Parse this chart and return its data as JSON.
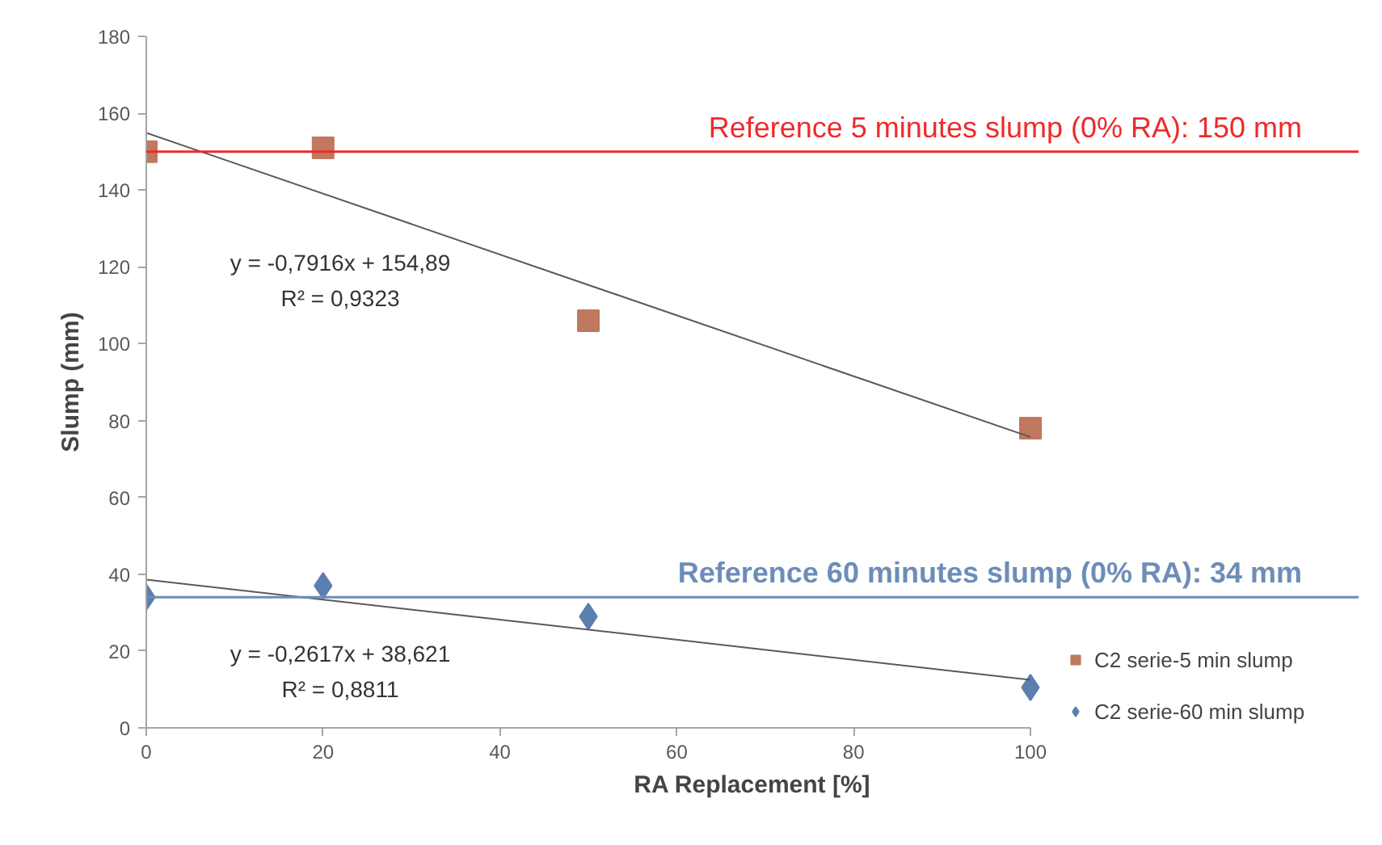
{
  "chart_data": {
    "type": "scatter",
    "xlabel": "RA Replacement [%]",
    "ylabel": "Slump (mm)",
    "xlim": [
      0,
      100
    ],
    "xticks": [
      0,
      20,
      40,
      60,
      80,
      100
    ],
    "ylim": [
      0,
      180
    ],
    "yticks": [
      0,
      20,
      40,
      60,
      80,
      100,
      120,
      140,
      160,
      180
    ],
    "grid": false,
    "legend": "right",
    "series": [
      {
        "name": "C2 serie-5 min slump",
        "color": "#c0785e",
        "marker": "square",
        "x": [
          0,
          20,
          50,
          100
        ],
        "values": [
          150,
          151,
          106,
          78
        ]
      },
      {
        "name": "C2 serie-60 min slump",
        "color": "#5b7faf",
        "marker": "diamond",
        "x": [
          0,
          20,
          50,
          100
        ],
        "values": [
          34,
          37,
          29,
          10.5
        ]
      },
      {
        "type": "line",
        "color": "#595959",
        "x": [
          0,
          100
        ],
        "values": [
          154.9,
          75.7
        ]
      },
      {
        "type": "line",
        "color": "#595959",
        "x": [
          0,
          100
        ],
        "values": [
          38.6,
          12.5
        ]
      }
    ],
    "ref_lines": [
      {
        "axis": "y",
        "value": 150,
        "label": "Reference 5 minutes slump (0% RA): 150 mm",
        "color": "#ee2a2a"
      },
      {
        "axis": "y",
        "value": 34,
        "label": "Reference 60 minutes slump (0% RA): 34 mm",
        "color": "#6d8db8"
      }
    ],
    "annotations": [
      "y = -0,7916x + 154,89",
      "R² = 0,9323",
      "y = -0,2617x + 38,621",
      "R² = 0,8811"
    ]
  }
}
